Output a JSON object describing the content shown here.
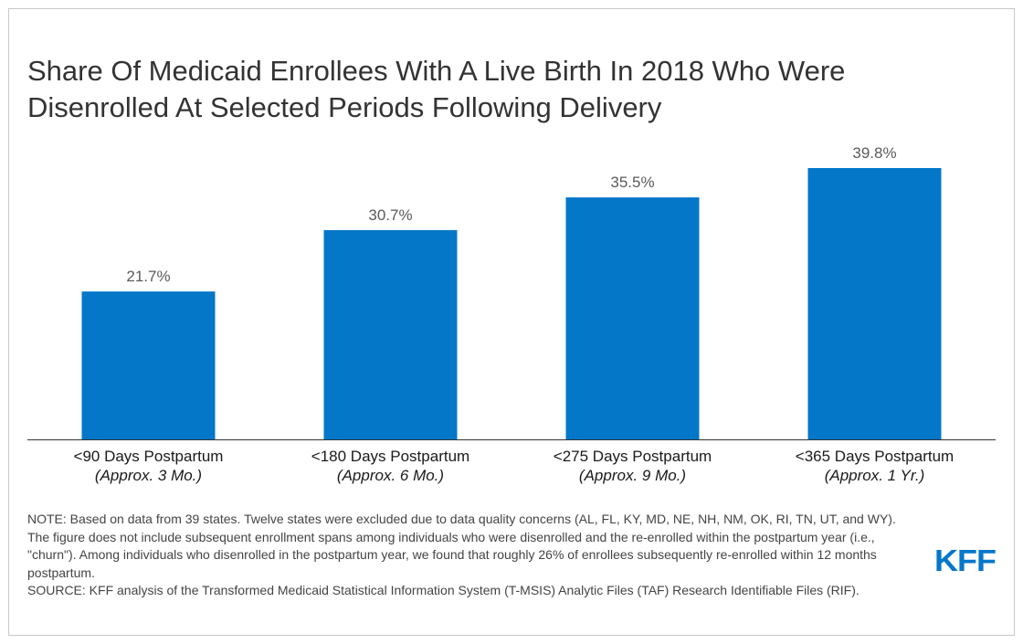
{
  "chart_data": {
    "type": "bar",
    "title_lines": [
      "Share Of Medicaid Enrollees With A Live Birth In 2018 Who Were",
      "Disenrolled At Selected Periods Following Delivery"
    ],
    "categories": [
      "<90 Days Postpartum",
      "<180 Days Postpartum",
      "<275 Days Postpartum",
      "<365 Days Postpartum"
    ],
    "category_sublabels": [
      "(Approx. 3 Mo.)",
      "(Approx. 6 Mo.)",
      "(Approx. 9 Mo.)",
      "(Approx. 1 Yr.)"
    ],
    "values": [
      21.7,
      30.7,
      35.5,
      39.8
    ],
    "value_labels": [
      "21.7%",
      "30.7%",
      "35.5%",
      "39.8%"
    ],
    "ylim": [
      0,
      40
    ],
    "xlabel": "",
    "ylabel": "",
    "grid": false,
    "bar_color": "#0477c9"
  },
  "note": {
    "note_text": "NOTE: Based on data from 39 states. Twelve states were excluded due to data quality concerns (AL, FL, KY, MD, NE, NH, NM, OK, RI, TN, UT, and WY). The figure does not include subsequent enrollment spans among individuals who were disenrolled and the re-enrolled within the postpartum year (i.e., \"churn\"). Among individuals who disenrolled in the postpartum year, we found that roughly 26% of enrollees subsequently re-enrolled within 12 months postpartum.",
    "source_text": "SOURCE: KFF analysis of the Transformed Medicaid Statistical Information System (T-MSIS) Analytic Files (TAF) Research Identifiable Files (RIF)."
  },
  "logo": {
    "text": "KFF",
    "color": "#0477c9"
  }
}
